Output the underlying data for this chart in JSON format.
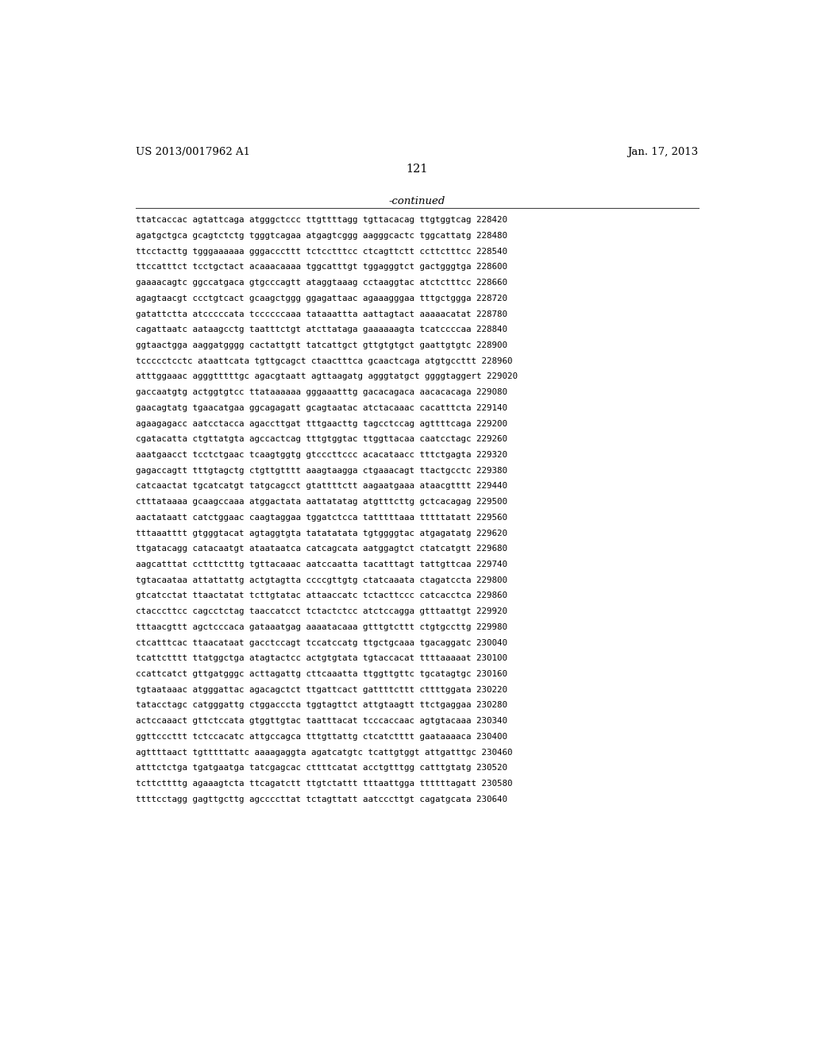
{
  "header_left": "US 2013/0017962 A1",
  "header_right": "Jan. 17, 2013",
  "page_number": "121",
  "continued_label": "-continued",
  "background_color": "#ffffff",
  "text_color": "#000000",
  "font_size_header": 9.5,
  "font_size_page": 10.5,
  "font_size_continued": 9.5,
  "font_size_sequence": 7.8,
  "sequence_lines": [
    "ttatcaccac agtattcaga atgggctccc ttgttttagg tgttacacag ttgtggtcag 228420",
    "agatgctgca gcagtctctg tgggtcagaa atgagtcggg aagggcactc tggcattatg 228480",
    "ttcctacttg tgggaaaaaa gggacccttt tctcctttcc ctcagttctt ccttctttcc 228540",
    "ttccatttct tcctgctact acaaacaaaa tggcatttgt tggagggtct gactgggtga 228600",
    "gaaaacagtc ggccatgaca gtgcccagtt ataggtaaag cctaaggtac atctctttcc 228660",
    "agagtaacgt ccctgtcact gcaagctggg ggagattaac agaaagggaa tttgctggga 228720",
    "gatattctta atcccccata tccccccaaa tataaattta aattagtact aaaaacatat 228780",
    "cagattaatc aataagcctg taatttctgt atcttataga gaaaaaagta tcatccccaa 228840",
    "ggtaactgga aaggatgggg cactattgtt tatcattgct gttgtgtgct gaattgtgtc 228900",
    "tccccctcctc ataattcata tgttgcagct ctaactttca gcaactcaga atgtgccttt 228960",
    "atttggaaac agggtttttgc agacgtaatt agttaagatg agggtatgct ggggtaggert 229020",
    "gaccaatgtg actggtgtcc ttataaaaaa gggaaatttg gacacagaca aacacacaga 229080",
    "gaacagtatg tgaacatgaa ggcagagatt gcagtaatac atctacaaac cacatttcta 229140",
    "agaagagacc aatcctacca agaccttgat tttgaacttg tagcctccag agttttcaga 229200",
    "cgatacatta ctgttatgta agccactcag tttgtggtac ttggttacaa caatcctagc 229260",
    "aaatgaacct tcctctgaac tcaagtggtg gtcccttccc acacataacc tttctgagta 229320",
    "gagaccagtt tttgtagctg ctgttgtttt aaagtaagga ctgaaacagt ttactgcctc 229380",
    "catcaactat tgcatcatgt tatgcagcct gtattttctt aagaatgaaa ataacgtttt 229440",
    "ctttataaaa gcaagccaaa atggactata aattatatag atgtttcttg gctcacagag 229500",
    "aactataatt catctggaac caagtaggaa tggatctcca tatttttaaa tttttatatt 229560",
    "tttaaatttt gtgggtacat agtaggtgta tatatatata tgtggggtac atgagatatg 229620",
    "ttgatacagg catacaatgt ataataatca catcagcata aatggagtct ctatcatgtt 229680",
    "aagcatttat cctttctttg tgttacaaac aatccaatta tacatttagt tattgttcaa 229740",
    "tgtacaataa attattattg actgtagtta ccccgttgtg ctatcaaata ctagatccta 229800",
    "gtcatcctat ttaactatat tcttgtatac attaaccatc tctacttccc catcacctca 229860",
    "ctacccttcc cagcctctag taaccatcct tctactctcc atctccagga gtttaattgt 229920",
    "tttaacgttt agctcccaca gataaatgag aaaatacaaa gtttgtcttt ctgtgccttg 229980",
    "ctcatttcac ttaacataat gacctccagt tccatccatg ttgctgcaaa tgacaggatc 230040",
    "tcattctttt ttatggctga atagtactcc actgtgtata tgtaccacat ttttaaaaat 230100",
    "ccattcatct gttgatgggc acttagattg cttcaaatta ttggttgttc tgcatagtgc 230160",
    "tgtaataaac atgggattac agacagctct ttgattcact gattttcttt cttttggata 230220",
    "tatacctagc catgggattg ctggacccta tggtagttct attgtaagtt ttctgaggaa 230280",
    "actccaaact gttctccata gtggttgtac taatttacat tcccaccaac agtgtacaaa 230340",
    "ggttcccttt tctccacatc attgccagca tttgttattg ctcatctttt gaataaaaca 230400",
    "agttttaact tgtttttattc aaaagaggta agatcatgtc tcattgtggt attgatttgc 230460",
    "atttctctga tgatgaatga tatcgagcac cttttcatat acctgtttgg catttgtatg 230520",
    "tcttcttttg agaaagtcta ttcagatctt ttgtctattt tttaattgga ttttttagatt 230580",
    "ttttcctagg gagttgcttg agccccttat tctagttatt aatcccttgt cagatgcata 230640"
  ]
}
